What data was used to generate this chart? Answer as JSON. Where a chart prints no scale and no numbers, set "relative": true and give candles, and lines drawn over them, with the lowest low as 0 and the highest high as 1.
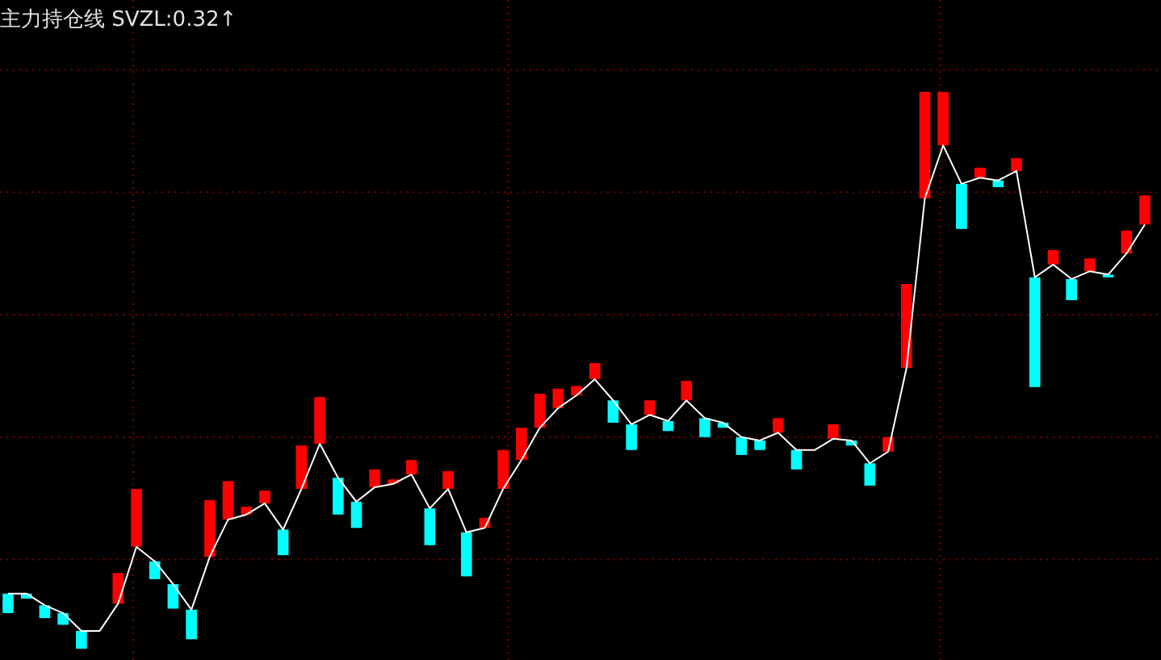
{
  "chart_data": {
    "type": "candlestick",
    "title": "主力持仓线 SVZL:0.32↑",
    "relative": true,
    "grid": true,
    "categories": [
      null,
      null,
      null,
      null,
      null,
      null,
      null,
      null,
      null,
      null,
      null,
      null,
      null,
      null,
      null,
      null,
      null,
      null,
      null,
      null,
      null,
      null,
      null,
      null,
      null,
      null,
      null,
      null,
      null,
      null,
      null,
      null,
      null,
      null,
      null,
      null,
      null,
      null,
      null,
      null,
      null,
      null,
      null,
      null,
      null,
      null,
      null,
      null,
      null,
      null,
      null,
      null,
      null,
      null,
      null,
      null,
      null,
      null,
      null,
      null,
      null,
      null,
      null
    ],
    "ohlc": [
      [
        0.099,
        0.099,
        0.064,
        0.064
      ],
      [
        0.099,
        0.099,
        0.09,
        0.09
      ],
      [
        0.078,
        0.078,
        0.055,
        0.055
      ],
      [
        0.064,
        0.064,
        0.043,
        0.043
      ],
      [
        0.032,
        0.032,
        0,
        0
      ],
      null,
      [
        0.081,
        0.136,
        0.081,
        0.136
      ],
      [
        0.183,
        0.287,
        0.183,
        0.287
      ],
      [
        0.157,
        0.157,
        0.125,
        0.125
      ],
      [
        0.116,
        0.116,
        0.072,
        0.072
      ],
      [
        0.07,
        0.07,
        0.017,
        0.017
      ],
      [
        0.165,
        0.267,
        0.165,
        0.267
      ],
      [
        0.232,
        0.301,
        0.232,
        0.301
      ],
      [
        0.241,
        0.255,
        0.241,
        0.255
      ],
      [
        0.261,
        0.284,
        0.261,
        0.284
      ],
      [
        0.214,
        0.214,
        0.168,
        0.168
      ],
      [
        0.287,
        0.365,
        0.287,
        0.365
      ],
      [
        0.368,
        0.452,
        0.368,
        0.452
      ],
      [
        0.307,
        0.307,
        0.241,
        0.241
      ],
      [
        0.264,
        0.264,
        0.217,
        0.217
      ],
      [
        0.29,
        0.322,
        0.29,
        0.322
      ],
      [
        0.296,
        0.304,
        0.296,
        0.304
      ],
      [
        0.313,
        0.339,
        0.313,
        0.339
      ],
      [
        0.252,
        0.252,
        0.186,
        0.186
      ],
      [
        0.287,
        0.319,
        0.287,
        0.319
      ],
      [
        0.209,
        0.209,
        0.13,
        0.13
      ],
      [
        0.217,
        0.235,
        0.217,
        0.235
      ],
      [
        0.287,
        0.357,
        0.287,
        0.357
      ],
      [
        0.339,
        0.397,
        0.339,
        0.397
      ],
      [
        0.397,
        0.458,
        0.397,
        0.458
      ],
      [
        0.432,
        0.467,
        0.432,
        0.467
      ],
      [
        0.455,
        0.472,
        0.455,
        0.472
      ],
      [
        0.484,
        0.513,
        0.484,
        0.513
      ],
      [
        0.446,
        0.446,
        0.406,
        0.406
      ],
      [
        0.403,
        0.403,
        0.357,
        0.357
      ],
      [
        0.42,
        0.446,
        0.42,
        0.446
      ],
      [
        0.409,
        0.409,
        0.391,
        0.391
      ],
      [
        0.446,
        0.481,
        0.446,
        0.481
      ],
      [
        0.414,
        0.414,
        0.38,
        0.38
      ],
      [
        0.406,
        0.406,
        0.397,
        0.397
      ],
      [
        0.38,
        0.38,
        0.348,
        0.348
      ],
      [
        0.374,
        0.374,
        0.357,
        0.357
      ],
      [
        0.388,
        0.414,
        0.388,
        0.414
      ],
      [
        0.357,
        0.357,
        0.322,
        0.322
      ],
      null,
      [
        0.377,
        0.403,
        0.377,
        0.403
      ],
      [
        0.374,
        0.374,
        0.365,
        0.365
      ],
      [
        0.333,
        0.333,
        0.293,
        0.293
      ],
      [
        0.354,
        0.38,
        0.354,
        0.38
      ],
      [
        0.504,
        0.655,
        0.504,
        0.655
      ],
      [
        0.809,
        1,
        0.809,
        1
      ],
      [
        0.904,
        1,
        0.904,
        1
      ],
      [
        0.835,
        0.835,
        0.754,
        0.754
      ],
      [
        0.846,
        0.864,
        0.846,
        0.864
      ],
      [
        0.841,
        0.841,
        0.829,
        0.829
      ],
      [
        0.858,
        0.881,
        0.858,
        0.881
      ],
      [
        0.667,
        0.667,
        0.47,
        0.47
      ],
      [
        0.69,
        0.716,
        0.69,
        0.716
      ],
      [
        0.664,
        0.664,
        0.626,
        0.626
      ],
      [
        0.678,
        0.701,
        0.678,
        0.701
      ],
      [
        0.672,
        0.672,
        0.667,
        0.667
      ],
      [
        0.71,
        0.751,
        0.71,
        0.751
      ],
      [
        0.762,
        0.814,
        0.762,
        0.814
      ]
    ],
    "colors": [
      "#00ffff",
      "#00ffff",
      "#00ffff",
      "#00ffff",
      "#00ffff",
      null,
      "#ff0000",
      "#ff0000",
      "#00ffff",
      "#00ffff",
      "#00ffff",
      "#ff0000",
      "#ff0000",
      "#ff0000",
      "#ff0000",
      "#00ffff",
      "#ff0000",
      "#ff0000",
      "#00ffff",
      "#00ffff",
      "#ff0000",
      "#ff0000",
      "#ff0000",
      "#00ffff",
      "#ff0000",
      "#00ffff",
      "#ff0000",
      "#ff0000",
      "#ff0000",
      "#ff0000",
      "#ff0000",
      "#ff0000",
      "#ff0000",
      "#00ffff",
      "#00ffff",
      "#ff0000",
      "#00ffff",
      "#ff0000",
      "#00ffff",
      "#00ffff",
      "#00ffff",
      "#00ffff",
      "#ff0000",
      "#00ffff",
      null,
      "#ff0000",
      "#00ffff",
      "#00ffff",
      "#ff0000",
      "#ff0000",
      "#ff0000",
      "#ff0000",
      "#00ffff",
      "#ff0000",
      "#00ffff",
      "#ff0000",
      "#00ffff",
      "#ff0000",
      "#00ffff",
      "#ff0000",
      "#00ffff",
      "#ff0000",
      "#ff0000"
    ],
    "series": [
      {
        "type": "line",
        "color": "#ffffff",
        "values": [
          0.099,
          0.099,
          0.078,
          0.064,
          0.032,
          0.032,
          0.081,
          0.183,
          0.157,
          0.116,
          0.07,
          0.165,
          0.232,
          0.241,
          0.261,
          0.214,
          0.287,
          0.368,
          0.307,
          0.264,
          0.29,
          0.296,
          0.313,
          0.252,
          0.287,
          0.209,
          0.217,
          0.287,
          0.339,
          0.397,
          0.432,
          0.455,
          0.484,
          0.446,
          0.403,
          0.42,
          0.409,
          0.446,
          0.414,
          0.406,
          0.38,
          0.374,
          0.388,
          0.357,
          0.357,
          0.377,
          0.374,
          0.333,
          0.354,
          0.504,
          0.809,
          0.904,
          0.835,
          0.846,
          0.841,
          0.858,
          0.667,
          0.69,
          0.664,
          0.678,
          0.672,
          0.71,
          0.762
        ]
      }
    ]
  }
}
